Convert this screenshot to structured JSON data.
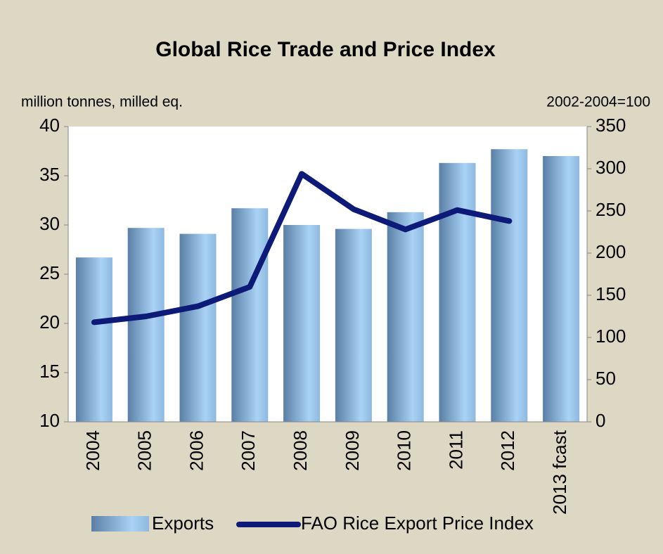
{
  "chart_data": {
    "type": "bar_line",
    "title": "Global Rice Trade and Price Index",
    "y_label": "million tonnes, milled eq.",
    "y2_label": "2002-2004=100",
    "categories": [
      "2004",
      "2005",
      "2006",
      "2007",
      "2008",
      "2009",
      "2010",
      "2011",
      "2012",
      "2013 fcast"
    ],
    "series": [
      {
        "name": "Exports",
        "type": "bar",
        "color": "#8fb8e0",
        "values": [
          26.7,
          29.7,
          29.1,
          31.7,
          30.0,
          29.6,
          31.3,
          36.3,
          37.7,
          37.0
        ]
      },
      {
        "name": "FAO Rice Export Price Index",
        "type": "line",
        "axis": "y2",
        "color": "#0d1a78",
        "values": [
          118,
          125,
          137,
          160,
          294,
          252,
          228,
          251,
          238,
          null
        ]
      }
    ],
    "ylim": [
      10,
      40
    ],
    "yticks": [
      10,
      15,
      20,
      25,
      30,
      35,
      40
    ],
    "y2lim": [
      0,
      350
    ],
    "y2ticks": [
      0,
      50,
      100,
      150,
      200,
      250,
      300,
      350
    ]
  }
}
